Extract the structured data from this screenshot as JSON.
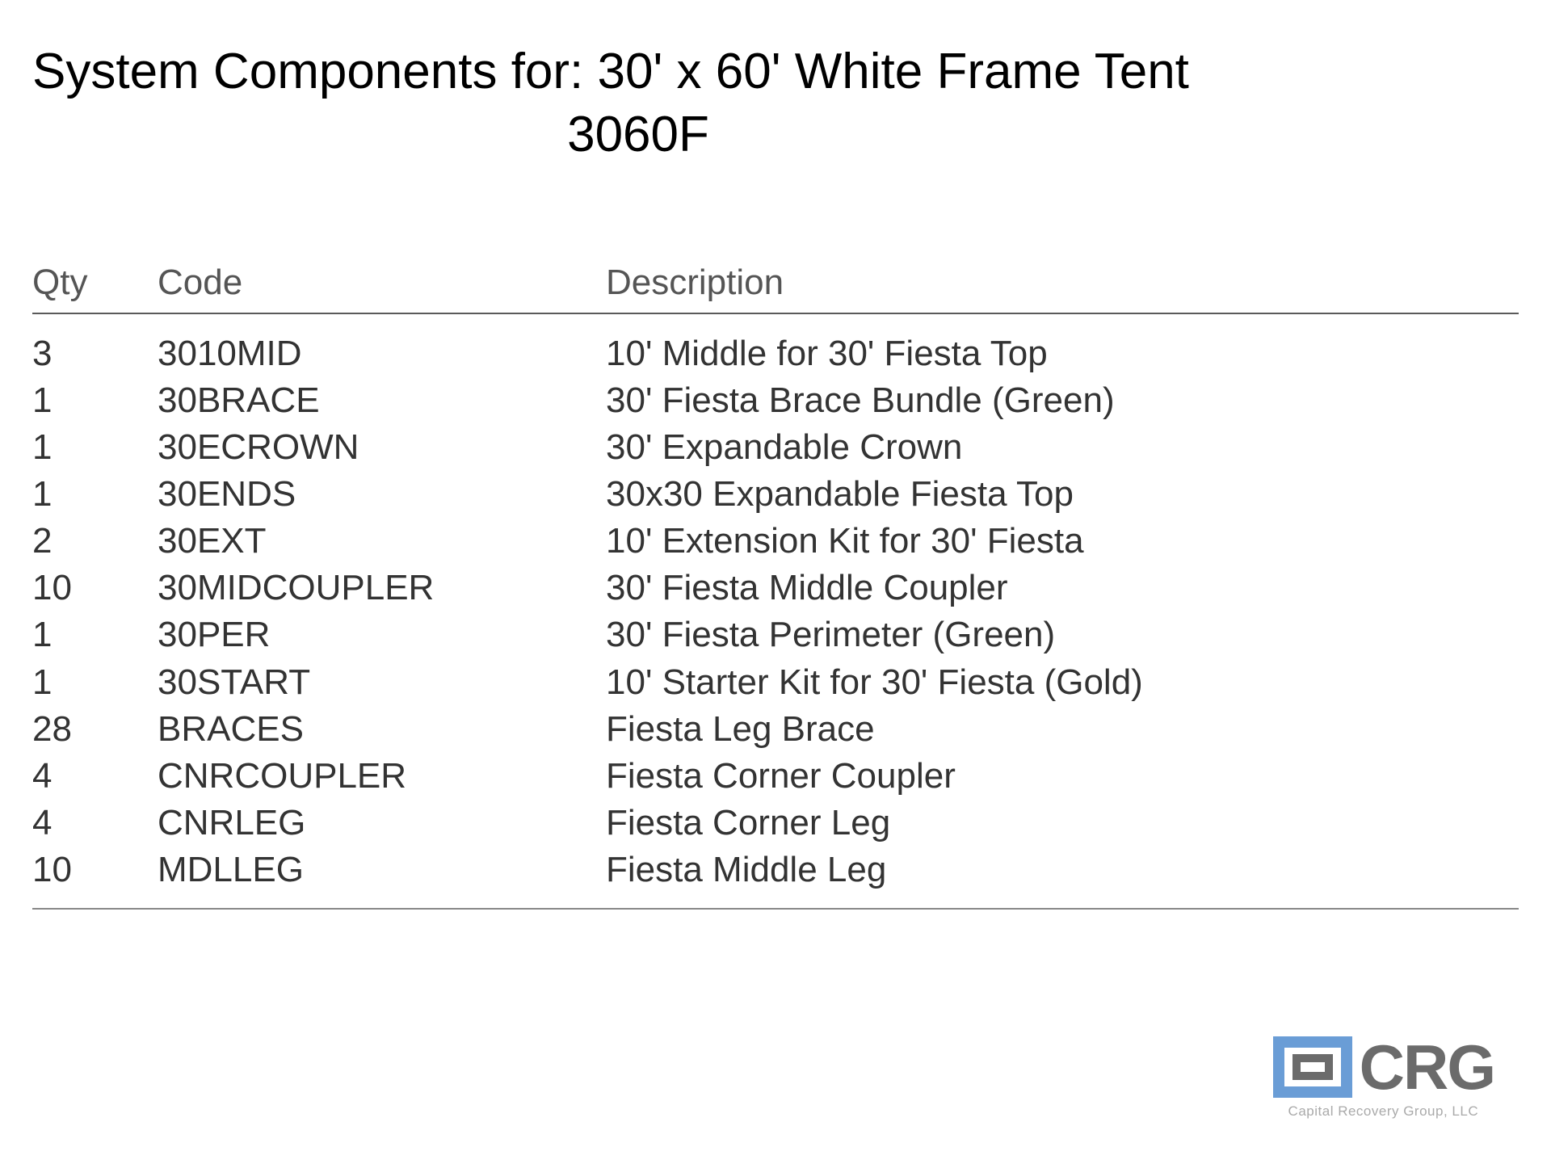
{
  "title": {
    "line1": "System Components for: 30' x 60' White Frame Tent",
    "line2": "3060F"
  },
  "table": {
    "headers": {
      "qty": "Qty",
      "code": "Code",
      "description": "Description"
    },
    "rows": [
      {
        "qty": "3",
        "code": "3010MID",
        "description": "10' Middle for 30' Fiesta Top"
      },
      {
        "qty": "1",
        "code": "30BRACE",
        "description": "30' Fiesta Brace Bundle (Green)"
      },
      {
        "qty": "1",
        "code": "30ECROWN",
        "description": "30' Expandable Crown"
      },
      {
        "qty": "1",
        "code": "30ENDS",
        "description": "30x30 Expandable Fiesta Top"
      },
      {
        "qty": "2",
        "code": "30EXT",
        "description": "10' Extension Kit for 30' Fiesta"
      },
      {
        "qty": "10",
        "code": "30MIDCOUPLER",
        "description": "30' Fiesta Middle Coupler"
      },
      {
        "qty": "1",
        "code": "30PER",
        "description": "30' Fiesta Perimeter (Green)"
      },
      {
        "qty": "1",
        "code": "30START",
        "description": "10' Starter Kit for 30' Fiesta (Gold)"
      },
      {
        "qty": "28",
        "code": "BRACES",
        "description": "Fiesta Leg Brace"
      },
      {
        "qty": "4",
        "code": "CNRCOUPLER",
        "description": "Fiesta Corner Coupler"
      },
      {
        "qty": "4",
        "code": "CNRLEG",
        "description": "Fiesta Corner Leg"
      },
      {
        "qty": "10",
        "code": "MDLLEG",
        "description": "Fiesta Middle Leg"
      }
    ]
  },
  "logo": {
    "text": "CRG",
    "tagline": "Capital Recovery Group, LLC",
    "icon_color_outer": "#6a9dd6",
    "icon_color_inner": "#6b6b6b"
  },
  "styling": {
    "title_fontsize": 62,
    "header_fontsize": 44,
    "cell_fontsize": 44,
    "title_color": "#000000",
    "header_color": "#555555",
    "cell_color": "#333333",
    "rule_color": "#5a5a5a",
    "background_color": "#ffffff",
    "col_widths": {
      "qty": 155,
      "code": 555
    }
  }
}
